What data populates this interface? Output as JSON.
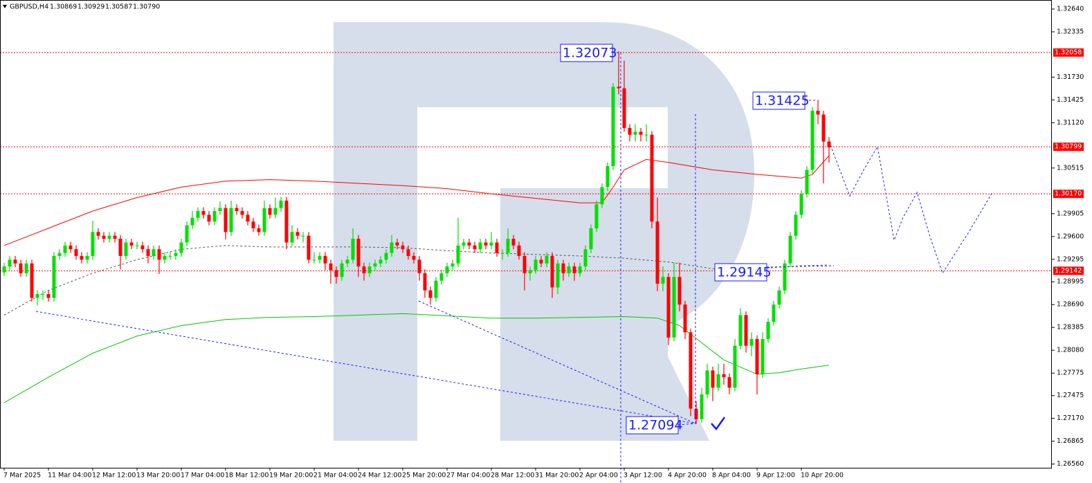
{
  "chart_data": {
    "type": "candlestick",
    "title": "GBPUSD,H4",
    "ohlc_labels": [
      "1.30869",
      "1.30929",
      "1.30587",
      "1.30790"
    ],
    "bull_color": "#00e000",
    "bear_color": "#ff0000",
    "xlim": [
      -0.75,
      189.25
    ],
    "ylim": [
      1.2651,
      1.3276
    ],
    "xticks": [
      {
        "value": 0,
        "label": "7 Mar 2025"
      },
      {
        "value": 8,
        "label": "11 Mar 04:00"
      },
      {
        "value": 16,
        "label": "12 Mar 12:00"
      },
      {
        "value": 24,
        "label": "13 Mar 20:00"
      },
      {
        "value": 32,
        "label": "17 Mar 04:00"
      },
      {
        "value": 40,
        "label": "18 Mar 12:00"
      },
      {
        "value": 48,
        "label": "19 Mar 20:00"
      },
      {
        "value": 56,
        "label": "21 Mar 04:00"
      },
      {
        "value": 64,
        "label": "24 Mar 12:00"
      },
      {
        "value": 72,
        "label": "25 Mar 20:00"
      },
      {
        "value": 80,
        "label": "27 Mar 04:00"
      },
      {
        "value": 88,
        "label": "28 Mar 12:00"
      },
      {
        "value": 96,
        "label": "31 Mar 20:00"
      },
      {
        "value": 104,
        "label": "2 Apr 04:00"
      },
      {
        "value": 112,
        "label": "3 Apr 12:00"
      },
      {
        "value": 120,
        "label": "4 Apr 20:00"
      },
      {
        "value": 128,
        "label": "8 Apr 04:00"
      },
      {
        "value": 136,
        "label": "9 Apr 12:00"
      },
      {
        "value": 144,
        "label": "10 Apr 20:00"
      }
    ],
    "yticks": [
      {
        "value": 1.3264,
        "label": "1.32640"
      },
      {
        "value": 1.32335,
        "label": "1.32335"
      },
      {
        "value": 1.3173,
        "label": "1.31730"
      },
      {
        "value": 1.31425,
        "label": "1.31425"
      },
      {
        "value": 1.3112,
        "label": "1.31120"
      },
      {
        "value": 1.30515,
        "label": "1.30515"
      },
      {
        "value": 1.29905,
        "label": "1.29905"
      },
      {
        "value": 1.296,
        "label": "1.29600"
      },
      {
        "value": 1.29295,
        "label": "1.29295"
      },
      {
        "value": 1.28995,
        "label": "1.28995"
      },
      {
        "value": 1.2869,
        "label": "1.28690"
      },
      {
        "value": 1.28385,
        "label": "1.28385"
      },
      {
        "value": 1.2808,
        "label": "1.28080"
      },
      {
        "value": 1.27775,
        "label": "1.27775"
      },
      {
        "value": 1.27475,
        "label": "1.27475"
      },
      {
        "value": 1.2717,
        "label": "1.27170"
      },
      {
        "value": 1.26865,
        "label": "1.26865"
      },
      {
        "value": 1.2656,
        "label": "1.26560"
      }
    ],
    "levels": [
      {
        "value": 1.32058,
        "label": "1.32058"
      },
      {
        "value": 1.30799,
        "label": "1.30799"
      },
      {
        "value": 1.3017,
        "label": "1.30170"
      },
      {
        "value": 1.29142,
        "label": "1.29142"
      }
    ],
    "level_color": "#ff0000",
    "annotations": [
      "1.32073",
      "1.31425",
      "1.29145",
      "1.27094"
    ],
    "annotation_color": "#1a1aff",
    "candles": [
      [
        1.2912,
        1.2925,
        1.2907,
        1.292
      ],
      [
        1.292,
        1.2934,
        1.2915,
        1.2929
      ],
      [
        1.2929,
        1.2934,
        1.2919,
        1.2924
      ],
      [
        1.2924,
        1.2929,
        1.2906,
        1.2911
      ],
      [
        1.2911,
        1.2929,
        1.2906,
        1.2924
      ],
      [
        1.2924,
        1.2929,
        1.2873,
        1.2878
      ],
      [
        1.2878,
        1.2888,
        1.2868,
        1.2883
      ],
      [
        1.2883,
        1.2888,
        1.2875,
        1.2883
      ],
      [
        1.2883,
        1.2888,
        1.2873,
        1.2878
      ],
      [
        1.2878,
        1.2939,
        1.2873,
        1.2934
      ],
      [
        1.2934,
        1.2943,
        1.2929,
        1.2938
      ],
      [
        1.2938,
        1.2953,
        1.2933,
        1.2948
      ],
      [
        1.2948,
        1.2953,
        1.2938,
        1.2943
      ],
      [
        1.2943,
        1.2948,
        1.2929,
        1.2934
      ],
      [
        1.2934,
        1.2939,
        1.2924,
        1.2929
      ],
      [
        1.2929,
        1.2939,
        1.2924,
        1.2934
      ],
      [
        1.2934,
        1.2981,
        1.2929,
        1.2966
      ],
      [
        1.2966,
        1.2971,
        1.2956,
        1.2961
      ],
      [
        1.2961,
        1.2966,
        1.2952,
        1.2957
      ],
      [
        1.2957,
        1.2966,
        1.2952,
        1.2961
      ],
      [
        1.2961,
        1.2966,
        1.2952,
        1.2957
      ],
      [
        1.2957,
        1.2962,
        1.2916,
        1.2934
      ],
      [
        1.2934,
        1.2957,
        1.2929,
        1.2952
      ],
      [
        1.2952,
        1.2957,
        1.2943,
        1.2948
      ],
      [
        1.2948,
        1.2953,
        1.2943,
        1.2948
      ],
      [
        1.2948,
        1.2953,
        1.2938,
        1.2943
      ],
      [
        1.2943,
        1.2948,
        1.2924,
        1.2934
      ],
      [
        1.2934,
        1.2948,
        1.2929,
        1.2943
      ],
      [
        1.2943,
        1.2948,
        1.291,
        1.2929
      ],
      [
        1.2929,
        1.2939,
        1.2924,
        1.2934
      ],
      [
        1.2934,
        1.2939,
        1.2929,
        1.2934
      ],
      [
        1.2934,
        1.2943,
        1.2929,
        1.2938
      ],
      [
        1.2938,
        1.2957,
        1.2933,
        1.2952
      ],
      [
        1.2952,
        1.298,
        1.2947,
        1.2975
      ],
      [
        1.2975,
        1.2994,
        1.297,
        1.2985
      ],
      [
        1.2985,
        1.2999,
        1.298,
        1.2994
      ],
      [
        1.2994,
        1.2999,
        1.2984,
        1.2989
      ],
      [
        1.2989,
        1.2994,
        1.2975,
        1.298
      ],
      [
        1.298,
        1.2999,
        1.2975,
        1.2994
      ],
      [
        1.2994,
        1.3007,
        1.2989,
        1.2998
      ],
      [
        1.2998,
        1.3003,
        1.2956,
        1.2966
      ],
      [
        1.2966,
        1.3008,
        1.2961,
        1.2998
      ],
      [
        1.2998,
        1.3003,
        1.2989,
        1.2994
      ],
      [
        1.2994,
        1.2999,
        1.2984,
        1.2989
      ],
      [
        1.2989,
        1.2994,
        1.2975,
        1.298
      ],
      [
        1.298,
        1.2985,
        1.2966,
        1.2971
      ],
      [
        1.2971,
        1.2976,
        1.2961,
        1.2966
      ],
      [
        1.2966,
        1.3008,
        1.2961,
        1.2998
      ],
      [
        1.2998,
        1.3003,
        1.2984,
        1.2989
      ],
      [
        1.2989,
        1.3012,
        1.2984,
        1.2998
      ],
      [
        1.2998,
        1.3013,
        1.2993,
        1.3008
      ],
      [
        1.3008,
        1.3013,
        1.2943,
        1.2952
      ],
      [
        1.2952,
        1.2975,
        1.2947,
        1.2966
      ],
      [
        1.2966,
        1.2971,
        1.2956,
        1.2961
      ],
      [
        1.2961,
        1.2966,
        1.2952,
        1.2961
      ],
      [
        1.2961,
        1.2966,
        1.2924,
        1.2929
      ],
      [
        1.2929,
        1.2939,
        1.2924,
        1.2929
      ],
      [
        1.2929,
        1.2939,
        1.2924,
        1.2934
      ],
      [
        1.2934,
        1.2939,
        1.2915,
        1.2924
      ],
      [
        1.2924,
        1.2929,
        1.2897,
        1.2915
      ],
      [
        1.2915,
        1.292,
        1.2897,
        1.2906
      ],
      [
        1.2906,
        1.2929,
        1.2901,
        1.2924
      ],
      [
        1.2924,
        1.2934,
        1.2919,
        1.2929
      ],
      [
        1.2929,
        1.2971,
        1.2924,
        1.2957
      ],
      [
        1.2957,
        1.2962,
        1.2906,
        1.292
      ],
      [
        1.292,
        1.2925,
        1.2901,
        1.2911
      ],
      [
        1.2911,
        1.2925,
        1.2906,
        1.292
      ],
      [
        1.292,
        1.2929,
        1.2915,
        1.2924
      ],
      [
        1.2924,
        1.2934,
        1.2919,
        1.2929
      ],
      [
        1.2929,
        1.2943,
        1.2924,
        1.2938
      ],
      [
        1.2938,
        1.2962,
        1.2933,
        1.2952
      ],
      [
        1.2952,
        1.2957,
        1.2943,
        1.2948
      ],
      [
        1.2948,
        1.2953,
        1.2938,
        1.2943
      ],
      [
        1.2943,
        1.2948,
        1.2929,
        1.2934
      ],
      [
        1.2934,
        1.2939,
        1.2924,
        1.2929
      ],
      [
        1.2929,
        1.2934,
        1.2901,
        1.2911
      ],
      [
        1.2911,
        1.2916,
        1.2878,
        1.2888
      ],
      [
        1.2888,
        1.2893,
        1.2869,
        1.2878
      ],
      [
        1.2878,
        1.2906,
        1.2873,
        1.2901
      ],
      [
        1.2901,
        1.2916,
        1.2896,
        1.2911
      ],
      [
        1.2911,
        1.2925,
        1.2906,
        1.292
      ],
      [
        1.292,
        1.2929,
        1.2915,
        1.2924
      ],
      [
        1.2924,
        1.2985,
        1.2919,
        1.2948
      ],
      [
        1.2948,
        1.2957,
        1.2943,
        1.2952
      ],
      [
        1.2952,
        1.2957,
        1.2943,
        1.2948
      ],
      [
        1.2948,
        1.2953,
        1.2938,
        1.2943
      ],
      [
        1.2943,
        1.2957,
        1.2938,
        1.2952
      ],
      [
        1.2952,
        1.2957,
        1.2943,
        1.2948
      ],
      [
        1.2948,
        1.2966,
        1.2943,
        1.2952
      ],
      [
        1.2952,
        1.2957,
        1.2933,
        1.2938
      ],
      [
        1.2938,
        1.2943,
        1.2929,
        1.2938
      ],
      [
        1.2938,
        1.2971,
        1.2933,
        1.2957
      ],
      [
        1.2957,
        1.2962,
        1.2943,
        1.2948
      ],
      [
        1.2948,
        1.2953,
        1.2929,
        1.2934
      ],
      [
        1.2934,
        1.2939,
        1.2888,
        1.2911
      ],
      [
        1.2911,
        1.292,
        1.2901,
        1.2915
      ],
      [
        1.2915,
        1.2934,
        1.291,
        1.2929
      ],
      [
        1.2929,
        1.2934,
        1.2919,
        1.2924
      ],
      [
        1.2924,
        1.2939,
        1.2919,
        1.2934
      ],
      [
        1.2934,
        1.2939,
        1.2878,
        1.2892
      ],
      [
        1.2892,
        1.2929,
        1.2883,
        1.2924
      ],
      [
        1.2924,
        1.2929,
        1.2901,
        1.2911
      ],
      [
        1.2911,
        1.2925,
        1.2906,
        1.292
      ],
      [
        1.292,
        1.2925,
        1.2901,
        1.2911
      ],
      [
        1.2911,
        1.2925,
        1.2906,
        1.292
      ],
      [
        1.292,
        1.2948,
        1.2915,
        1.2943
      ],
      [
        1.2943,
        1.2976,
        1.2938,
        1.2971
      ],
      [
        1.2971,
        1.3008,
        1.2966,
        1.3003
      ],
      [
        1.3003,
        1.3031,
        1.2998,
        1.3026
      ],
      [
        1.3026,
        1.3059,
        1.3021,
        1.3054
      ],
      [
        1.3054,
        1.3165,
        1.3049,
        1.316
      ],
      [
        1.316,
        1.32073,
        1.315,
        1.3158
      ],
      [
        1.3158,
        1.3195,
        1.31,
        1.3105
      ],
      [
        1.3105,
        1.311,
        1.3087,
        1.3096
      ],
      [
        1.3096,
        1.311,
        1.3087,
        1.31
      ],
      [
        1.31,
        1.3105,
        1.3087,
        1.3096
      ],
      [
        1.3096,
        1.311,
        1.3087,
        1.3096
      ],
      [
        1.3096,
        1.3101,
        1.2971,
        1.298
      ],
      [
        1.298,
        1.3012,
        1.2887,
        1.2897
      ],
      [
        1.2897,
        1.292,
        1.2887,
        1.2906
      ],
      [
        1.2906,
        1.2911,
        1.2815,
        1.2825
      ],
      [
        1.2825,
        1.2925,
        1.282,
        1.2906
      ],
      [
        1.2906,
        1.2925,
        1.286,
        1.2869
      ],
      [
        1.2869,
        1.2874,
        1.2823,
        1.2832
      ],
      [
        1.2832,
        1.2837,
        1.272,
        1.273
      ],
      [
        1.273,
        1.274,
        1.27094,
        1.2716
      ],
      [
        1.2716,
        1.2758,
        1.2711,
        1.2749
      ],
      [
        1.2749,
        1.279,
        1.2744,
        1.2781
      ],
      [
        1.2781,
        1.2786,
        1.274,
        1.2758
      ],
      [
        1.2758,
        1.279,
        1.2753,
        1.2776
      ],
      [
        1.2776,
        1.279,
        1.2762,
        1.2772
      ],
      [
        1.2772,
        1.2777,
        1.2749,
        1.2758
      ],
      [
        1.2758,
        1.2823,
        1.2753,
        1.2814
      ],
      [
        1.2814,
        1.2864,
        1.2809,
        1.2855
      ],
      [
        1.2855,
        1.286,
        1.2805,
        1.2814
      ],
      [
        1.2814,
        1.2832,
        1.28,
        1.2823
      ],
      [
        1.2823,
        1.2828,
        1.2749,
        1.2776
      ],
      [
        1.2776,
        1.2832,
        1.2771,
        1.2823
      ],
      [
        1.2823,
        1.2851,
        1.2818,
        1.2846
      ],
      [
        1.2846,
        1.2874,
        1.2841,
        1.2869
      ],
      [
        1.2869,
        1.2893,
        1.2864,
        1.2888
      ],
      [
        1.2888,
        1.2929,
        1.2883,
        1.2924
      ],
      [
        1.2924,
        1.2966,
        1.2919,
        1.2961
      ],
      [
        1.2961,
        1.2994,
        1.2956,
        1.2989
      ],
      [
        1.2989,
        1.3022,
        1.2984,
        1.3017
      ],
      [
        1.3017,
        1.3054,
        1.3012,
        1.3049
      ],
      [
        1.3049,
        1.3133,
        1.3044,
        1.3128
      ],
      [
        1.3128,
        1.31425,
        1.311,
        1.3123
      ],
      [
        1.3123,
        1.3128,
        1.3031,
        1.30869
      ],
      [
        1.30869,
        1.30929,
        1.30587,
        1.3079
      ]
    ],
    "lines": [
      {
        "color": "#ff0000",
        "dash": false,
        "x": [
          0,
          8,
          16,
          24,
          32,
          40,
          48,
          56,
          64,
          72,
          80,
          88,
          96,
          104,
          108,
          110,
          112,
          116,
          120,
          128,
          136,
          144,
          146,
          149
        ],
        "values": [
          1.2948,
          1.2971,
          1.2994,
          1.3012,
          1.3026,
          1.3034,
          1.3036,
          1.3034,
          1.3031,
          1.3028,
          1.3024,
          1.3017,
          1.3011,
          1.3005,
          1.3005,
          1.3026,
          1.3049,
          1.3063,
          1.3059,
          1.3049,
          1.3043,
          1.3038,
          1.3043,
          1.3068
        ]
      },
      {
        "color": "#00c800",
        "dash": false,
        "x": [
          0,
          8,
          16,
          24,
          32,
          40,
          48,
          56,
          64,
          72,
          80,
          88,
          96,
          104,
          112,
          118,
          122,
          126,
          130,
          136,
          140,
          144,
          149
        ],
        "values": [
          1.2738,
          1.2772,
          1.2804,
          1.2827,
          1.2841,
          1.2849,
          1.2852,
          1.2853,
          1.2855,
          1.2857,
          1.2854,
          1.2851,
          1.2851,
          1.2852,
          1.2853,
          1.2851,
          1.2841,
          1.2818,
          1.2795,
          1.2776,
          1.2778,
          1.2783,
          1.2788
        ]
      },
      {
        "color": "#555555",
        "dash": true,
        "x": [
          0,
          8,
          16,
          24,
          32,
          40,
          48,
          56,
          64,
          72,
          80,
          88,
          96,
          104,
          112,
          120,
          128,
          136,
          144,
          149
        ],
        "values": [
          1.2855,
          1.2888,
          1.2911,
          1.2929,
          1.2943,
          1.2948,
          1.2946,
          1.2946,
          1.2946,
          1.2945,
          1.2941,
          1.2938,
          1.2936,
          1.2934,
          1.2931,
          1.2926,
          1.2917,
          1.2917,
          1.2921,
          1.2922
        ]
      },
      {
        "color": "#1a1aff",
        "dash": true,
        "x": [
          149.25,
          152.75,
          155.25,
          157.75,
          160.75,
          162.4,
          164.9,
          167.1,
          169.5,
          174,
          178.6
        ],
        "values": [
          1.3082,
          1.3014,
          1.3049,
          1.308,
          1.2955,
          1.2986,
          1.3019,
          1.2963,
          1.2911,
          1.2963,
          1.302
        ]
      }
    ]
  }
}
